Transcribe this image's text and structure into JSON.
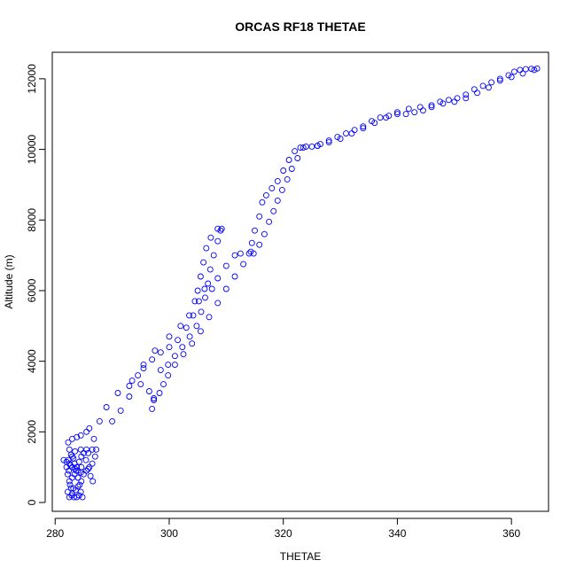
{
  "chart_data": {
    "type": "scatter",
    "title": "ORCAS RF18 THETAE",
    "xlabel": "THETAE",
    "ylabel": "Altitude (m)",
    "xlim": [
      279.5,
      366.5
    ],
    "ylim": [
      -250,
      12750
    ],
    "xticks": [
      280,
      300,
      320,
      340,
      360
    ],
    "yticks": [
      0,
      2000,
      4000,
      6000,
      8000,
      10000,
      12000
    ],
    "grid": false,
    "legend": "none",
    "marker": "open-circle",
    "color": "#0000ff",
    "series": [
      {
        "segment": "ascent-1",
        "points": [
          [
            282.5,
            150
          ],
          [
            283.2,
            400
          ],
          [
            284.0,
            700
          ],
          [
            284.6,
            1000
          ],
          [
            285.8,
            1400
          ],
          [
            286.8,
            1800
          ],
          [
            287.8,
            2300
          ],
          [
            289.0,
            2700
          ],
          [
            291.0,
            3100
          ],
          [
            293.5,
            3450
          ],
          [
            295.5,
            3900
          ],
          [
            297.5,
            4300
          ],
          [
            300.0,
            4700
          ],
          [
            302.0,
            5000
          ],
          [
            303.5,
            5300
          ],
          [
            304.5,
            5700
          ],
          [
            305.0,
            6000
          ],
          [
            305.5,
            6400
          ],
          [
            306.0,
            6800
          ],
          [
            306.5,
            7200
          ],
          [
            307.3,
            7500
          ],
          [
            308.5,
            7750
          ],
          [
            309.2,
            7750
          ]
        ]
      },
      {
        "segment": "descent-1",
        "points": [
          [
            309.0,
            7700
          ],
          [
            308.5,
            7400
          ],
          [
            307.8,
            7000
          ],
          [
            307.2,
            6600
          ],
          [
            306.8,
            6200
          ],
          [
            306.3,
            5800
          ],
          [
            305.6,
            5400
          ],
          [
            304.8,
            5000
          ],
          [
            303.6,
            4700
          ],
          [
            302.3,
            4400
          ],
          [
            301.0,
            4150
          ],
          [
            299.8,
            3900
          ],
          [
            298.5,
            3750
          ]
        ]
      },
      {
        "segment": "ascent-2",
        "points": [
          [
            297.0,
            2650
          ],
          [
            297.3,
            2900
          ],
          [
            296.5,
            3150
          ],
          [
            295.0,
            3350
          ],
          [
            293.0,
            3000
          ],
          [
            291.5,
            2600
          ],
          [
            290.0,
            2300
          ],
          [
            293.0,
            3300
          ],
          [
            294.5,
            3600
          ],
          [
            295.5,
            3800
          ],
          [
            297.0,
            4050
          ],
          [
            298.5,
            4250
          ],
          [
            300.0,
            4400
          ],
          [
            301.5,
            4600
          ],
          [
            303.0,
            4950
          ],
          [
            304.2,
            5300
          ],
          [
            305.2,
            5700
          ],
          [
            306.2,
            6050
          ],
          [
            307.5,
            6050
          ],
          [
            308.5,
            6350
          ],
          [
            310.0,
            6700
          ],
          [
            311.5,
            7000
          ],
          [
            312.5,
            7050
          ],
          [
            314.0,
            7050
          ],
          [
            314.3,
            7100
          ]
        ]
      },
      {
        "segment": "ascent-3",
        "points": [
          [
            314.5,
            7350
          ],
          [
            315.0,
            7700
          ],
          [
            315.8,
            8100
          ],
          [
            316.3,
            8500
          ],
          [
            317.0,
            8700
          ],
          [
            318.0,
            8900
          ],
          [
            319.0,
            9100
          ],
          [
            320.0,
            9400
          ],
          [
            321.0,
            9700
          ],
          [
            322.0,
            9950
          ],
          [
            323.0,
            10050
          ],
          [
            324.0,
            10080
          ],
          [
            325.0,
            10080
          ],
          [
            326.0,
            10100
          ]
        ]
      },
      {
        "segment": "descent-2",
        "points": [
          [
            323.5,
            10050
          ],
          [
            322.5,
            9750
          ],
          [
            321.5,
            9450
          ],
          [
            320.7,
            9150
          ],
          [
            319.8,
            8850
          ],
          [
            319.0,
            8550
          ],
          [
            318.3,
            8250
          ],
          [
            317.5,
            7950
          ],
          [
            316.7,
            7600
          ],
          [
            315.8,
            7300
          ],
          [
            314.8,
            7050
          ],
          [
            313.0,
            6750
          ],
          [
            311.5,
            6400
          ],
          [
            310.0,
            6050
          ],
          [
            308.5,
            5650
          ],
          [
            307.0,
            5250
          ],
          [
            305.5,
            4850
          ],
          [
            304.0,
            4500
          ],
          [
            302.5,
            4200
          ],
          [
            301.0,
            3900
          ],
          [
            299.8,
            3600
          ],
          [
            299.0,
            3350
          ],
          [
            298.3,
            3100
          ],
          [
            297.3,
            2950
          ]
        ]
      },
      {
        "segment": "upper-ascent",
        "points": [
          [
            326.5,
            10150
          ],
          [
            328.0,
            10250
          ],
          [
            329.5,
            10350
          ],
          [
            331.0,
            10450
          ],
          [
            332.5,
            10550
          ],
          [
            334.0,
            10650
          ],
          [
            335.5,
            10800
          ],
          [
            337.0,
            10900
          ],
          [
            338.5,
            10950
          ],
          [
            340.0,
            11000
          ],
          [
            341.5,
            11000
          ],
          [
            343.0,
            11050
          ],
          [
            344.5,
            11100
          ],
          [
            346.0,
            11200
          ],
          [
            347.5,
            11350
          ],
          [
            349.0,
            11400
          ],
          [
            350.5,
            11450
          ],
          [
            352.0,
            11550
          ],
          [
            353.5,
            11700
          ],
          [
            355.0,
            11800
          ],
          [
            356.5,
            11900
          ],
          [
            358.0,
            12000
          ],
          [
            359.5,
            12100
          ],
          [
            360.5,
            12200
          ],
          [
            361.5,
            12250
          ],
          [
            362.5,
            12270
          ],
          [
            363.5,
            12280
          ],
          [
            364.5,
            12290
          ]
        ]
      },
      {
        "segment": "upper-descent",
        "points": [
          [
            364.0,
            12250
          ],
          [
            362.0,
            12150
          ],
          [
            360.0,
            12050
          ],
          [
            358.0,
            11950
          ],
          [
            356.0,
            11750
          ],
          [
            354.0,
            11600
          ],
          [
            352.0,
            11450
          ],
          [
            350.0,
            11350
          ],
          [
            348.0,
            11300
          ],
          [
            346.0,
            11250
          ],
          [
            344.0,
            11200
          ],
          [
            342.0,
            11150
          ],
          [
            340.0,
            11050
          ],
          [
            338.0,
            10900
          ],
          [
            336.0,
            10750
          ],
          [
            334.0,
            10600
          ],
          [
            332.0,
            10450
          ],
          [
            330.0,
            10300
          ],
          [
            328.0,
            10200
          ],
          [
            326.0,
            10100
          ]
        ]
      },
      {
        "segment": "boundary-layer",
        "points": [
          [
            281.5,
            1200
          ],
          [
            282.0,
            1150
          ],
          [
            282.5,
            1100
          ],
          [
            283.0,
            1000
          ],
          [
            283.5,
            950
          ],
          [
            284.0,
            900
          ],
          [
            284.5,
            850
          ],
          [
            285.0,
            800
          ],
          [
            285.5,
            900
          ],
          [
            286.0,
            1000
          ],
          [
            286.5,
            1100
          ],
          [
            287.0,
            1300
          ],
          [
            287.2,
            1500
          ],
          [
            286.5,
            1500
          ],
          [
            285.5,
            1500
          ],
          [
            284.5,
            1500
          ],
          [
            283.5,
            1450
          ],
          [
            282.8,
            1350
          ],
          [
            282.3,
            1200
          ],
          [
            282.0,
            1000
          ],
          [
            282.2,
            800
          ],
          [
            282.5,
            600
          ],
          [
            282.8,
            400
          ],
          [
            283.0,
            250
          ],
          [
            283.3,
            150
          ],
          [
            283.8,
            150
          ],
          [
            284.2,
            200
          ],
          [
            284.5,
            300
          ],
          [
            284.3,
            500
          ],
          [
            284.0,
            700
          ],
          [
            283.7,
            900
          ],
          [
            283.4,
            1100
          ],
          [
            283.0,
            1300
          ],
          [
            282.5,
            1500
          ],
          [
            282.3,
            1700
          ],
          [
            283.0,
            1800
          ],
          [
            283.8,
            1850
          ],
          [
            284.5,
            1900
          ],
          [
            285.5,
            2000
          ],
          [
            286.0,
            2100
          ],
          [
            282.2,
            300
          ],
          [
            282.6,
            500
          ],
          [
            283.0,
            700
          ],
          [
            283.4,
            800
          ],
          [
            283.8,
            1000
          ],
          [
            284.2,
            1150
          ],
          [
            284.6,
            1300
          ],
          [
            285.0,
            1400
          ],
          [
            285.4,
            1200
          ],
          [
            285.8,
            950
          ],
          [
            286.2,
            750
          ],
          [
            286.6,
            600
          ],
          [
            284.0,
            450
          ],
          [
            283.6,
            350
          ],
          [
            282.9,
            200
          ],
          [
            284.8,
            150
          ],
          [
            284.6,
            600
          ],
          [
            283.2,
            1250
          ],
          [
            282.7,
            1050
          ],
          [
            282.4,
            900
          ]
        ]
      }
    ]
  }
}
